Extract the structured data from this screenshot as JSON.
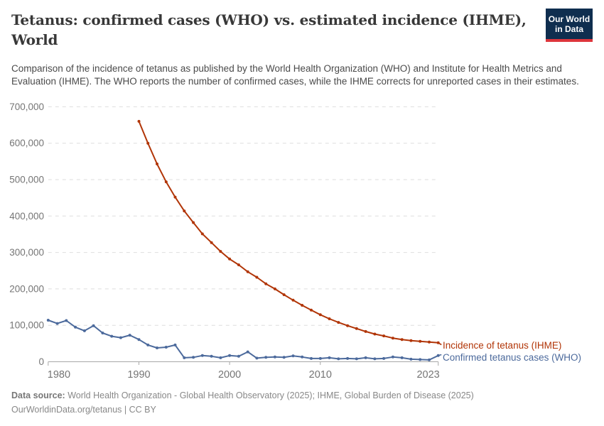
{
  "header": {
    "title_line1": "Tetanus: confirmed cases (WHO) vs. estimated incidence (IHME),",
    "title_line2": "World",
    "subtitle": "Comparison of the incidence of tetanus as published by the World Health Organization (WHO) and Institute for Health Metrics and Evaluation (IHME). The WHO reports the number of confirmed cases, while the IHME corrects for unreported cases in their estimates.",
    "logo": {
      "line1": "Our World",
      "line2": "in Data"
    }
  },
  "chart_data": {
    "type": "line",
    "title": "Tetanus: confirmed cases (WHO) vs. estimated incidence (IHME), World",
    "xlabel": "",
    "ylabel": "",
    "xlim": [
      1980,
      2023
    ],
    "ylim": [
      0,
      700000
    ],
    "grid": true,
    "gridline_style": "dashed",
    "legend_position": "right-of-line-end",
    "x_ticks": [
      {
        "year": 1980,
        "label": "1980"
      },
      {
        "year": 1990,
        "label": "1990"
      },
      {
        "year": 2000,
        "label": "2000"
      },
      {
        "year": 2010,
        "label": "2010"
      },
      {
        "year": 2023,
        "label": "2023"
      }
    ],
    "y_ticks": [
      {
        "value": 0,
        "label": "0"
      },
      {
        "value": 100000,
        "label": "100,000"
      },
      {
        "value": 200000,
        "label": "200,000"
      },
      {
        "value": 300000,
        "label": "300,000"
      },
      {
        "value": 400000,
        "label": "400,000"
      },
      {
        "value": 500000,
        "label": "500,000"
      },
      {
        "value": 600000,
        "label": "600,000"
      },
      {
        "value": 700000,
        "label": "700,000"
      }
    ],
    "series": [
      {
        "name": "Incidence of tetanus (IHME)",
        "color": "#b13507",
        "start_year": 1990,
        "values": [
          660000,
          600000,
          543000,
          494000,
          452000,
          414000,
          382000,
          351000,
          327000,
          303000,
          282000,
          266000,
          247000,
          232000,
          214000,
          200000,
          184000,
          169000,
          155000,
          142000,
          129000,
          118000,
          108000,
          99000,
          91000,
          83000,
          76000,
          71000,
          65000,
          61000,
          58000,
          56000,
          54000,
          52000
        ]
      },
      {
        "name": "Confirmed tetanus cases (WHO)",
        "color": "#4c6a9c",
        "start_year": 1980,
        "values": [
          114000,
          105000,
          113000,
          95000,
          85000,
          99000,
          79000,
          70000,
          66000,
          73000,
          61000,
          46000,
          38000,
          40000,
          46000,
          11000,
          12000,
          17000,
          15000,
          11000,
          17000,
          15000,
          27000,
          10000,
          12000,
          13000,
          12000,
          16000,
          13000,
          9000,
          9000,
          11000,
          8000,
          9000,
          8000,
          11000,
          8000,
          9000,
          13000,
          11000,
          7000,
          6000,
          5000,
          17000
        ]
      }
    ],
    "colors": {
      "ihme_red": "#b13507",
      "who_blue": "#4c6a9c",
      "gridline": "#dedede",
      "axis": "#a8a8a8",
      "tick_text": "#757575"
    }
  },
  "footer": {
    "source_label": "Data source:",
    "source_value": "World Health Organization - Global Health Observatory (2025); IHME, Global Burden of Disease (2025)",
    "citation": "OurWorldinData.org/tetanus | CC BY"
  }
}
